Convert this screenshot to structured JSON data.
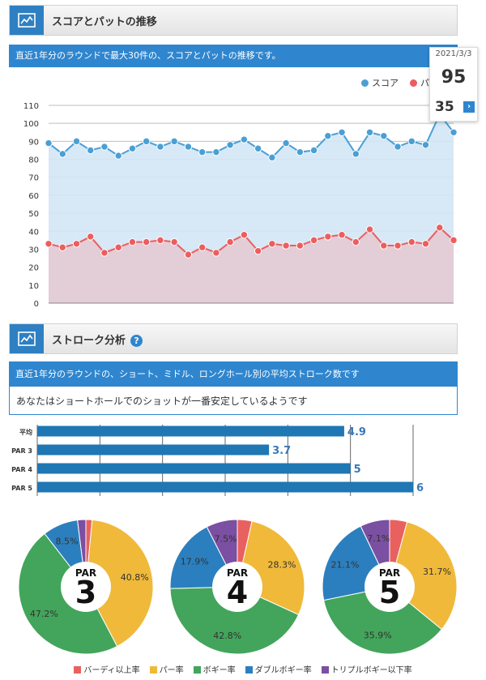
{
  "section1": {
    "title": "スコアとパットの推移",
    "subtitle": "直近1年分のラウンドで最大30件の、スコアとパットの推移です。"
  },
  "legend": {
    "score_label": "スコア",
    "putt_label": "パ"
  },
  "tooltip": {
    "date": "2021/3/3",
    "score": "95",
    "putts": "35"
  },
  "colors": {
    "score": "#4a9fd5",
    "putt": "#ec5e5e",
    "par_blue": "#1f77b4",
    "birdie": "#e8615f",
    "par": "#f0b93a",
    "bogey": "#42a55b",
    "double": "#2c7fbe",
    "triple": "#7b4fa1"
  },
  "section2": {
    "title": "ストローク分析",
    "subtitle": "直近1年分のラウンドの、ショート、ミドル、ロングホール別の平均ストローク数です",
    "message": "あなたはショートホールでのショットが一番安定しているようです"
  },
  "chart_data": [
    {
      "type": "line",
      "ylim": [
        0,
        110
      ],
      "yticks": [
        0,
        10,
        20,
        30,
        40,
        50,
        60,
        70,
        80,
        90,
        100,
        110
      ],
      "series": [
        {
          "name": "スコア",
          "values": [
            89,
            83,
            90,
            85,
            87,
            82,
            86,
            90,
            87,
            90,
            87,
            84,
            84,
            88,
            91,
            86,
            81,
            89,
            84,
            85,
            93,
            95,
            83,
            95,
            93,
            87,
            90,
            88,
            105,
            95
          ]
        },
        {
          "name": "パット",
          "values": [
            33,
            31,
            33,
            37,
            28,
            31,
            34,
            34,
            35,
            34,
            27,
            31,
            28,
            34,
            38,
            29,
            33,
            32,
            32,
            35,
            37,
            38,
            34,
            41,
            32,
            32,
            34,
            33,
            42,
            35
          ]
        }
      ]
    },
    {
      "type": "bar",
      "categories": [
        "平均",
        "PAR 3",
        "PAR 4",
        "PAR 5"
      ],
      "values": [
        4.9,
        3.7,
        5,
        6
      ],
      "value_labels": [
        "4.9",
        "3.7",
        "5",
        "6"
      ],
      "xlim": [
        0,
        6
      ]
    },
    {
      "type": "pie",
      "title_top": "PAR",
      "title_num": "3",
      "labels": [
        "バーディ以上率",
        "パー率",
        "ボギー率",
        "ダブルボギー率",
        "トリプルボギー以下率"
      ],
      "values": [
        1.5,
        40.8,
        47.2,
        8.5,
        2.0
      ],
      "display": [
        "",
        "40.8%",
        "47.2%",
        "8.5%",
        ""
      ]
    },
    {
      "type": "pie",
      "title_top": "PAR",
      "title_num": "4",
      "labels": [
        "バーディ以上率",
        "パー率",
        "ボギー率",
        "ダブルボギー率",
        "トリプルボギー以下率"
      ],
      "values": [
        3.5,
        28.3,
        42.8,
        17.9,
        7.5
      ],
      "display": [
        "",
        "28.3%",
        "42.8%",
        "17.9%",
        "7.5%"
      ]
    },
    {
      "type": "pie",
      "title_top": "PAR",
      "title_num": "5",
      "labels": [
        "バーディ以上率",
        "パー率",
        "ボギー率",
        "ダブルボギー率",
        "トリプルボギー以下率"
      ],
      "values": [
        4.2,
        31.7,
        35.9,
        21.1,
        7.1
      ],
      "display": [
        "",
        "31.7%",
        "35.9%",
        "21.1%",
        "7.1%"
      ]
    }
  ],
  "pie_legend": [
    "バーディ以上率",
    "パー率",
    "ボギー率",
    "ダブルボギー率",
    "トリプルボギー以下率"
  ]
}
